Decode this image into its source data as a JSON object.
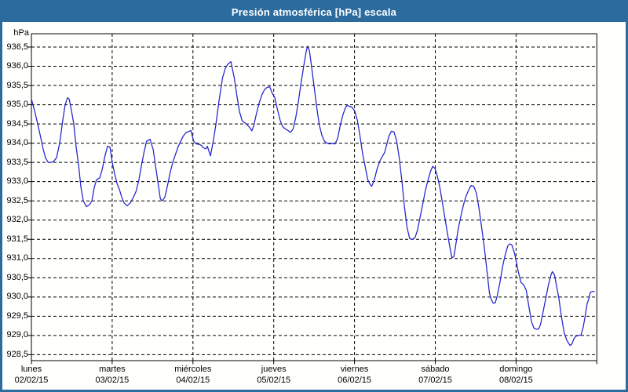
{
  "window": {
    "title": "Presión atmosférica [hPa] escala",
    "colors": {
      "chrome": "#2b6b9e",
      "title_text": "#ffffff",
      "plot_background": "#ffffff",
      "grid": "#000000",
      "text": "#000000",
      "line": "#2323cc"
    }
  },
  "chart_data": {
    "type": "line",
    "title": "Presión atmosférica [hPa] escala",
    "xlabel": "",
    "ylabel": "hPa",
    "legend_position": "none",
    "grid": {
      "horizontal": true,
      "vertical": true,
      "style": "dashed"
    },
    "y_axis": {
      "unit_header": "hPa",
      "min": 928.5,
      "max": 936.5,
      "step": 0.5,
      "tick_labels": [
        "936,5",
        "936,0",
        "935,5",
        "935,0",
        "934,5",
        "934,0",
        "933,5",
        "933,0",
        "932,5",
        "932,0",
        "931,5",
        "931,0",
        "930,5",
        "930,0",
        "929,5",
        "929,0",
        "928,5"
      ]
    },
    "x_axis": {
      "tick_days": [
        {
          "name": "lunes",
          "date": "02/02/15"
        },
        {
          "name": "martes",
          "date": "03/02/15"
        },
        {
          "name": "miércoles",
          "date": "04/02/15"
        },
        {
          "name": "jueves",
          "date": "05/02/15"
        },
        {
          "name": "viernes",
          "date": "06/02/15"
        },
        {
          "name": "sábado",
          "date": "07/02/15"
        },
        {
          "name": "domingo",
          "date": "08/02/15"
        }
      ],
      "span_days": 7
    },
    "series": [
      {
        "name": "Presión atmosférica [hPa]",
        "color": "#2323cc",
        "x_unit": "days_since_2015-02-02",
        "y_unit": "hPa",
        "points": [
          [
            0.0,
            935.15
          ],
          [
            0.039,
            934.85
          ],
          [
            0.078,
            934.5
          ],
          [
            0.11,
            934.2
          ],
          [
            0.145,
            933.85
          ],
          [
            0.175,
            933.62
          ],
          [
            0.207,
            933.5
          ],
          [
            0.24,
            933.5
          ],
          [
            0.272,
            933.52
          ],
          [
            0.311,
            933.62
          ],
          [
            0.35,
            934.0
          ],
          [
            0.389,
            934.6
          ],
          [
            0.418,
            935.0
          ],
          [
            0.447,
            935.18
          ],
          [
            0.467,
            935.15
          ],
          [
            0.496,
            934.85
          ],
          [
            0.525,
            934.5
          ],
          [
            0.554,
            933.9
          ],
          [
            0.583,
            933.45
          ],
          [
            0.613,
            932.85
          ],
          [
            0.642,
            932.5
          ],
          [
            0.681,
            932.35
          ],
          [
            0.719,
            932.4
          ],
          [
            0.749,
            932.5
          ],
          [
            0.778,
            932.85
          ],
          [
            0.807,
            933.05
          ],
          [
            0.846,
            933.1
          ],
          [
            0.875,
            933.3
          ],
          [
            0.914,
            933.7
          ],
          [
            0.943,
            933.92
          ],
          [
            0.972,
            933.9
          ],
          [
            1.001,
            933.5
          ],
          [
            1.031,
            933.2
          ],
          [
            1.06,
            932.95
          ],
          [
            1.089,
            932.8
          ],
          [
            1.118,
            932.6
          ],
          [
            1.147,
            932.45
          ],
          [
            1.186,
            932.37
          ],
          [
            1.225,
            932.45
          ],
          [
            1.264,
            932.6
          ],
          [
            1.296,
            932.75
          ],
          [
            1.329,
            933.03
          ],
          [
            1.361,
            933.4
          ],
          [
            1.393,
            933.75
          ],
          [
            1.426,
            934.05
          ],
          [
            1.468,
            934.1
          ],
          [
            1.507,
            933.84
          ],
          [
            1.539,
            933.37
          ],
          [
            1.572,
            932.9
          ],
          [
            1.597,
            932.55
          ],
          [
            1.62,
            932.5
          ],
          [
            1.653,
            932.6
          ],
          [
            1.685,
            932.9
          ],
          [
            1.718,
            933.24
          ],
          [
            1.75,
            933.5
          ],
          [
            1.782,
            933.7
          ],
          [
            1.815,
            933.9
          ],
          [
            1.847,
            934.05
          ],
          [
            1.879,
            934.18
          ],
          [
            1.915,
            934.28
          ],
          [
            1.944,
            934.3
          ],
          [
            1.974,
            934.33
          ],
          [
            2.01,
            934.05
          ],
          [
            2.042,
            933.98
          ],
          [
            2.071,
            933.97
          ],
          [
            2.1,
            933.95
          ],
          [
            2.129,
            933.88
          ],
          [
            2.158,
            933.85
          ],
          [
            2.178,
            933.92
          ],
          [
            2.217,
            933.67
          ],
          [
            2.256,
            934.1
          ],
          [
            2.285,
            934.5
          ],
          [
            2.323,
            935.1
          ],
          [
            2.366,
            935.7
          ],
          [
            2.401,
            935.95
          ],
          [
            2.431,
            936.05
          ],
          [
            2.47,
            936.12
          ],
          [
            2.511,
            935.7
          ],
          [
            2.544,
            935.23
          ],
          [
            2.576,
            934.82
          ],
          [
            2.609,
            934.58
          ],
          [
            2.642,
            934.53
          ],
          [
            2.674,
            934.47
          ],
          [
            2.706,
            934.4
          ],
          [
            2.729,
            934.32
          ],
          [
            2.752,
            934.45
          ],
          [
            2.787,
            934.78
          ],
          [
            2.82,
            935.05
          ],
          [
            2.852,
            935.25
          ],
          [
            2.885,
            935.39
          ],
          [
            2.917,
            935.45
          ],
          [
            2.949,
            935.47
          ],
          [
            2.982,
            935.3
          ],
          [
            3.014,
            935.18
          ],
          [
            3.046,
            934.88
          ],
          [
            3.079,
            934.6
          ],
          [
            3.111,
            934.43
          ],
          [
            3.143,
            934.37
          ],
          [
            3.176,
            934.33
          ],
          [
            3.208,
            934.28
          ],
          [
            3.24,
            934.37
          ],
          [
            3.273,
            934.67
          ],
          [
            3.305,
            935.08
          ],
          [
            3.337,
            935.55
          ],
          [
            3.37,
            935.99
          ],
          [
            3.403,
            936.4
          ],
          [
            3.419,
            936.52
          ],
          [
            3.442,
            936.4
          ],
          [
            3.468,
            935.99
          ],
          [
            3.5,
            935.48
          ],
          [
            3.532,
            934.94
          ],
          [
            3.565,
            934.47
          ],
          [
            3.597,
            934.2
          ],
          [
            3.629,
            934.05
          ],
          [
            3.662,
            934.0
          ],
          [
            3.694,
            933.98
          ],
          [
            3.727,
            934.0
          ],
          [
            3.759,
            933.98
          ],
          [
            3.792,
            934.13
          ],
          [
            3.824,
            934.47
          ],
          [
            3.857,
            934.74
          ],
          [
            3.889,
            934.93
          ],
          [
            3.905,
            934.98
          ],
          [
            3.938,
            934.96
          ],
          [
            3.97,
            934.93
          ],
          [
            4.003,
            934.84
          ],
          [
            4.035,
            934.6
          ],
          [
            4.067,
            934.2
          ],
          [
            4.1,
            933.73
          ],
          [
            4.132,
            933.39
          ],
          [
            4.164,
            933.05
          ],
          [
            4.197,
            932.91
          ],
          [
            4.213,
            932.88
          ],
          [
            4.246,
            933.05
          ],
          [
            4.278,
            933.32
          ],
          [
            4.317,
            933.55
          ],
          [
            4.346,
            933.66
          ],
          [
            4.375,
            933.77
          ],
          [
            4.424,
            934.17
          ],
          [
            4.456,
            934.31
          ],
          [
            4.489,
            934.29
          ],
          [
            4.521,
            934.07
          ],
          [
            4.553,
            933.63
          ],
          [
            4.586,
            933.03
          ],
          [
            4.618,
            932.35
          ],
          [
            4.65,
            931.81
          ],
          [
            4.683,
            931.52
          ],
          [
            4.715,
            931.5
          ],
          [
            4.748,
            931.54
          ],
          [
            4.78,
            931.74
          ],
          [
            4.812,
            932.08
          ],
          [
            4.845,
            932.42
          ],
          [
            4.877,
            932.76
          ],
          [
            4.909,
            933.03
          ],
          [
            4.942,
            933.27
          ],
          [
            4.968,
            933.4
          ],
          [
            4.997,
            933.34
          ],
          [
            5.023,
            933.16
          ],
          [
            5.056,
            932.85
          ],
          [
            5.088,
            932.45
          ],
          [
            5.12,
            932.05
          ],
          [
            5.153,
            931.63
          ],
          [
            5.185,
            931.25
          ],
          [
            5.206,
            931.02
          ],
          [
            5.23,
            931.05
          ],
          [
            5.25,
            931.3
          ],
          [
            5.282,
            931.75
          ],
          [
            5.315,
            932.08
          ],
          [
            5.347,
            932.38
          ],
          [
            5.379,
            932.61
          ],
          [
            5.412,
            932.78
          ],
          [
            5.444,
            932.9
          ],
          [
            5.476,
            932.88
          ],
          [
            5.509,
            932.7
          ],
          [
            5.541,
            932.3
          ],
          [
            5.574,
            931.8
          ],
          [
            5.606,
            931.3
          ],
          [
            5.638,
            930.7
          ],
          [
            5.671,
            930.1
          ],
          [
            5.694,
            929.93
          ],
          [
            5.718,
            929.84
          ],
          [
            5.742,
            929.85
          ],
          [
            5.768,
            930.04
          ],
          [
            5.801,
            930.38
          ],
          [
            5.833,
            930.79
          ],
          [
            5.865,
            931.09
          ],
          [
            5.898,
            931.33
          ],
          [
            5.923,
            931.38
          ],
          [
            5.947,
            931.36
          ],
          [
            5.979,
            931.16
          ],
          [
            5.996,
            930.99
          ],
          [
            6.028,
            930.65
          ],
          [
            6.06,
            930.38
          ],
          [
            6.093,
            930.32
          ],
          [
            6.125,
            930.18
          ],
          [
            6.157,
            929.77
          ],
          [
            6.19,
            929.36
          ],
          [
            6.222,
            929.19
          ],
          [
            6.254,
            929.16
          ],
          [
            6.281,
            929.17
          ],
          [
            6.303,
            929.29
          ],
          [
            6.336,
            929.63
          ],
          [
            6.368,
            929.97
          ],
          [
            6.4,
            930.31
          ],
          [
            6.433,
            930.58
          ],
          [
            6.449,
            930.66
          ],
          [
            6.475,
            930.58
          ],
          [
            6.497,
            930.34
          ],
          [
            6.53,
            929.97
          ],
          [
            6.562,
            929.49
          ],
          [
            6.595,
            929.08
          ],
          [
            6.627,
            928.88
          ],
          [
            6.65,
            928.8
          ],
          [
            6.669,
            928.74
          ],
          [
            6.692,
            928.78
          ],
          [
            6.715,
            928.91
          ],
          [
            6.74,
            928.98
          ],
          [
            6.773,
            929.0
          ],
          [
            6.805,
            929.01
          ],
          [
            6.832,
            929.22
          ],
          [
            6.854,
            929.49
          ],
          [
            6.88,
            929.83
          ],
          [
            6.903,
            929.97
          ],
          [
            6.919,
            930.12
          ],
          [
            6.942,
            930.14
          ],
          [
            6.968,
            930.15
          ]
        ]
      }
    ]
  }
}
